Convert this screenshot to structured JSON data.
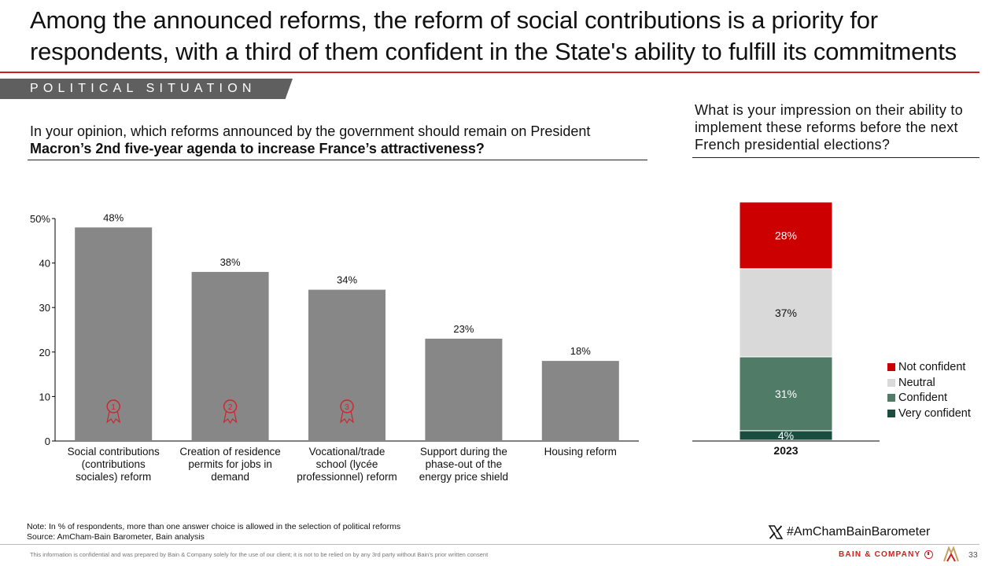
{
  "header": {
    "title": "Among the announced reforms, the reform of social contributions is a priority for respondents, with a third of them confident in the State's ability to fulfill its commitments",
    "section_tag": "POLITICAL SITUATION"
  },
  "left_question": {
    "line1": "In your opinion, which reforms announced by the government should remain on President",
    "line2_bold": "Macron’s 2nd five-year agenda to increase France’s attractiveness?"
  },
  "right_question": {
    "text": "What is your impression on their ability to implement these reforms before the next French presidential elections?"
  },
  "colors": {
    "bar_gray": "#878787",
    "accent_red": "#cc0000",
    "neutral": "#d9d9d9",
    "confident": "#4f7b67",
    "very_confident": "#1b4d3e",
    "rank_badge": "#c9272c"
  },
  "chart_data": [
    {
      "type": "bar",
      "categories": [
        [
          "Social contributions",
          "(contributions",
          "sociales) reform"
        ],
        [
          "Creation of residence",
          "permits for jobs in",
          "demand"
        ],
        [
          "Vocational/trade",
          "school (lycée",
          "professionnel) reform"
        ],
        [
          "Support during the",
          "phase-out of the",
          "energy price shield"
        ],
        [
          "Housing reform"
        ]
      ],
      "values": [
        48,
        38,
        34,
        23,
        18
      ],
      "data_labels": [
        "48%",
        "38%",
        "34%",
        "23%",
        "18%"
      ],
      "yticks": [
        "0",
        "10",
        "20",
        "30",
        "40",
        "50%"
      ],
      "ylim": [
        0,
        50
      ],
      "rank_badges": [
        "1",
        "2",
        "3"
      ],
      "grid": false
    },
    {
      "type": "bar",
      "stacked": true,
      "categories": [
        "2023"
      ],
      "series": [
        {
          "name": "Very confident",
          "values": [
            4
          ],
          "label": "4%",
          "color": "#1b4d3e"
        },
        {
          "name": "Confident",
          "values": [
            31
          ],
          "label": "31%",
          "color": "#4f7b67"
        },
        {
          "name": "Neutral",
          "values": [
            37
          ],
          "label": "37%",
          "color": "#d9d9d9"
        },
        {
          "name": "Not confident",
          "values": [
            28
          ],
          "label": "28%",
          "color": "#cc0000"
        }
      ],
      "legend": [
        "Not confident",
        "Neutral",
        "Confident",
        "Very confident"
      ],
      "legend_position": "right",
      "ylim": [
        0,
        100
      ]
    }
  ],
  "footer": {
    "note": "Note: In % of respondents, more than one answer choice is allowed in the selection of political reforms",
    "source": "Source: AmCham-Bain Barometer, Bain analysis",
    "hashtag": "#AmChamBainBarometer",
    "disclaimer": "This information is confidential and was prepared by Bain & Company solely for the use of our client; it is not to be relied on by any 3rd party without Bain's prior written consent",
    "brand": "BAIN & COMPANY",
    "page_number": "33"
  }
}
